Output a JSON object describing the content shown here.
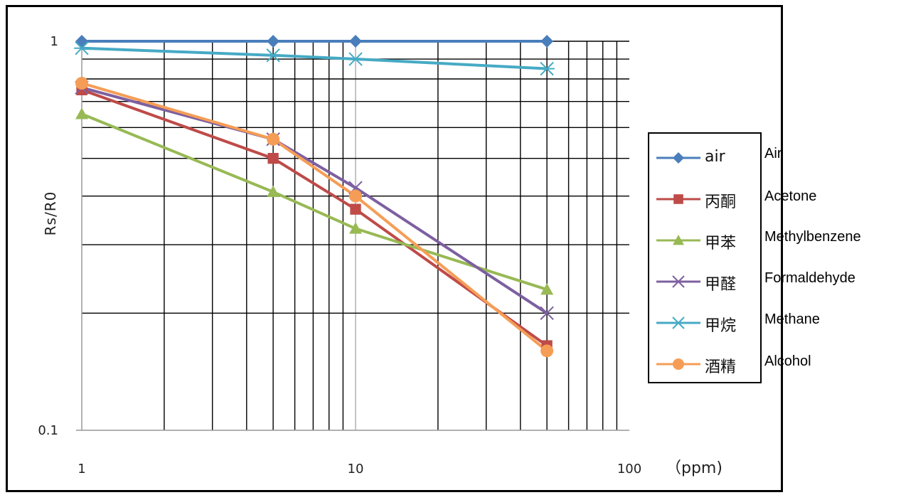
{
  "chart_data": {
    "type": "line",
    "x_scale": "log",
    "y_scale": "log",
    "xlim": [
      1,
      100
    ],
    "ylim": [
      0.1,
      1
    ],
    "x_ticks": [
      "1",
      "10",
      "100"
    ],
    "y_ticks": [
      "1",
      "0.1"
    ],
    "ylabel": "Rs/R0",
    "xunit": "（ppm)",
    "grid": true,
    "legend_position": "right",
    "series": [
      {
        "name": "air",
        "color": "#4a7ebb",
        "marker": "diamond",
        "points": [
          [
            1,
            1.0
          ],
          [
            5,
            1.0
          ],
          [
            10,
            1.0
          ],
          [
            50,
            1.0
          ]
        ]
      },
      {
        "name": "丙酮",
        "color": "#be4b48",
        "marker": "square",
        "points": [
          [
            1,
            0.75
          ],
          [
            5,
            0.5
          ],
          [
            10,
            0.37
          ],
          [
            50,
            0.165
          ]
        ]
      },
      {
        "name": "甲苯",
        "color": "#98b954",
        "marker": "triangle",
        "points": [
          [
            1,
            0.65
          ],
          [
            5,
            0.41
          ],
          [
            10,
            0.33
          ],
          [
            50,
            0.23
          ]
        ]
      },
      {
        "name": "甲醛",
        "color": "#7d60a0",
        "marker": "x",
        "points": [
          [
            1,
            0.76
          ],
          [
            5,
            0.56
          ],
          [
            10,
            0.42
          ],
          [
            50,
            0.2
          ]
        ]
      },
      {
        "name": "甲烷",
        "color": "#46aac5",
        "marker": "asterisk",
        "points": [
          [
            1,
            0.96
          ],
          [
            5,
            0.92
          ],
          [
            10,
            0.9
          ],
          [
            50,
            0.85
          ]
        ]
      },
      {
        "name": "酒精",
        "color": "#f59d56",
        "marker": "circle",
        "points": [
          [
            1,
            0.78
          ],
          [
            5,
            0.56
          ],
          [
            10,
            0.4
          ],
          [
            50,
            0.16
          ]
        ]
      }
    ]
  },
  "translations": [
    "Air",
    "Acetone",
    "Methylbenzene",
    "Formaldehyde",
    "Methane",
    "Alcohol"
  ]
}
